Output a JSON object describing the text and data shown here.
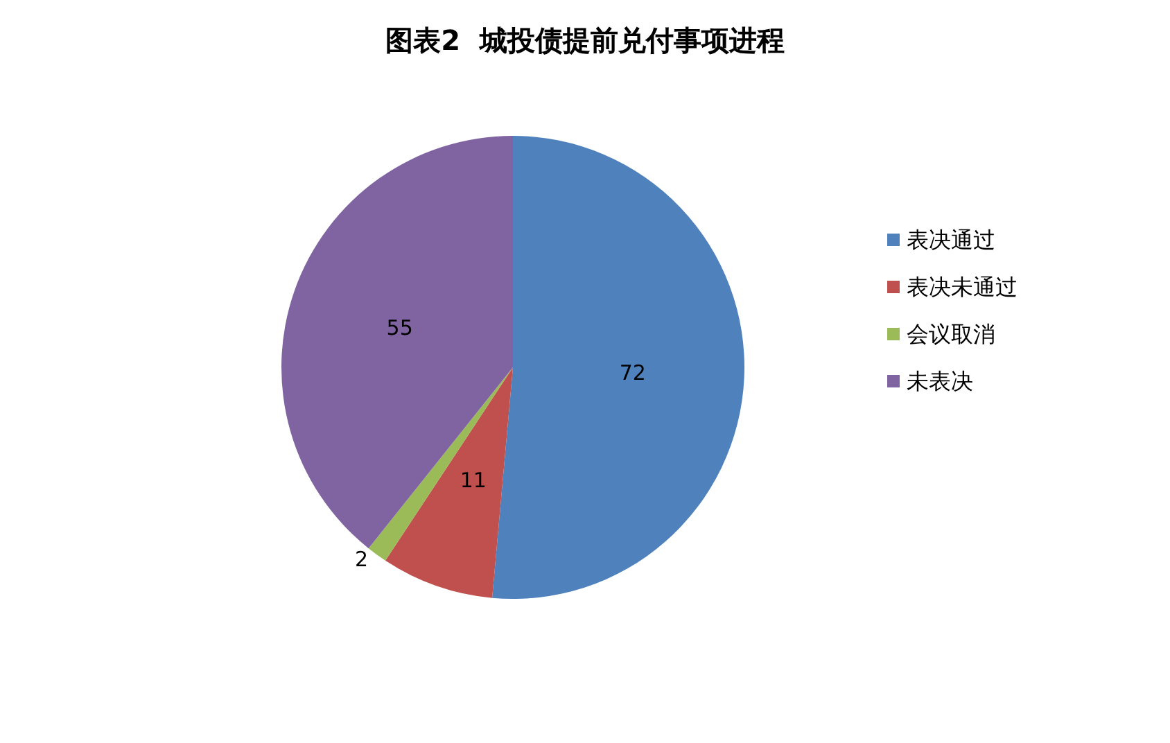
{
  "chart_data": {
    "type": "pie",
    "title": "图表2  城投债提前兑付事项进程",
    "categories": [
      "表决通过",
      "表决未通过",
      "会议取消",
      "未表决"
    ],
    "values": [
      72,
      11,
      2,
      55
    ],
    "colors": [
      "#4f81bd",
      "#c0504d",
      "#9bbb59",
      "#8064a2"
    ],
    "data_labels": true,
    "legend": "right"
  }
}
